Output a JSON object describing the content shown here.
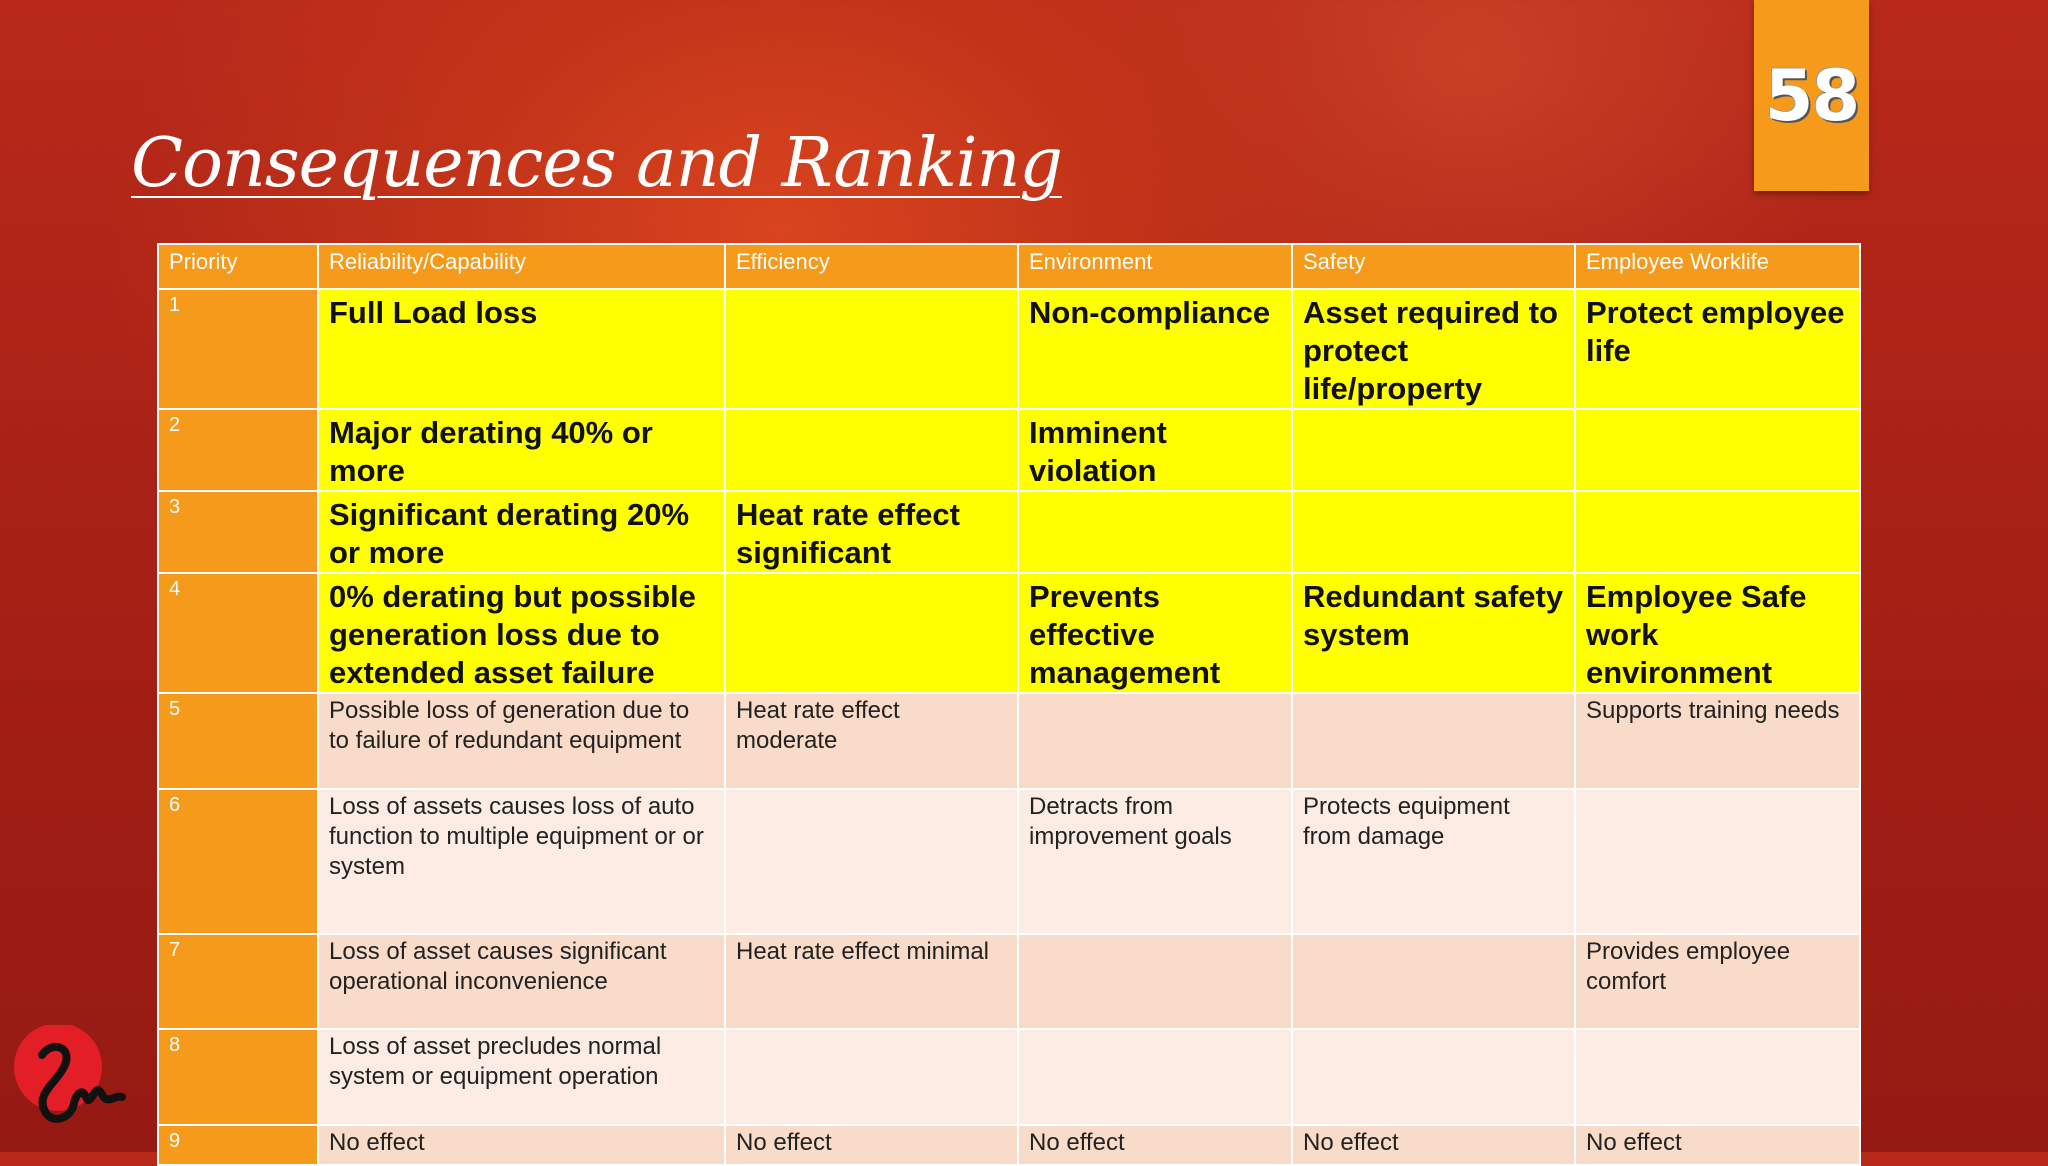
{
  "slide": {
    "title": "Consequences and Ranking",
    "page_number": "58",
    "accent_color": "#f59a1b",
    "highlight_color": "#ffff00"
  },
  "table": {
    "headers": [
      "Priority",
      "Reliability/Capability",
      "Efficiency",
      "Environment",
      "Safety",
      "Employee Worklife"
    ],
    "rows": [
      {
        "priority": "1",
        "cells": [
          "Full Load loss",
          "",
          "Non-compliance",
          "Asset required to protect life/property",
          "Protect employee life"
        ]
      },
      {
        "priority": "2",
        "cells": [
          "Major derating 40% or more",
          "",
          "Imminent violation",
          "",
          ""
        ]
      },
      {
        "priority": "3",
        "cells": [
          "Significant derating 20% or more",
          "Heat rate effect significant",
          "",
          "",
          ""
        ]
      },
      {
        "priority": "4",
        "cells": [
          "0% derating but possible generation loss due to extended asset failure",
          "",
          "Prevents effective management",
          "Redundant safety system",
          "Employee Safe work environment"
        ]
      },
      {
        "priority": "5",
        "cells": [
          "Possible loss of generation due to to failure of redundant equipment",
          "Heat rate effect moderate",
          "",
          "",
          "Supports training needs"
        ]
      },
      {
        "priority": "6",
        "cells": [
          "Loss of assets causes loss of auto function to multiple equipment or or system",
          "",
          "Detracts from improvement goals",
          "Protects equipment from damage",
          ""
        ]
      },
      {
        "priority": "7",
        "cells": [
          "Loss of asset causes significant operational inconvenience",
          "Heat rate effect minimal",
          "",
          "",
          "Provides employee comfort"
        ]
      },
      {
        "priority": "8",
        "cells": [
          "Loss of asset precludes normal system or equipment operation",
          "",
          "",
          "",
          ""
        ]
      },
      {
        "priority": "9",
        "cells": [
          "No effect",
          "No effect",
          "No effect",
          "No effect",
          "No effect"
        ]
      }
    ]
  },
  "logo": {
    "icon": "brand-logo-icon"
  }
}
